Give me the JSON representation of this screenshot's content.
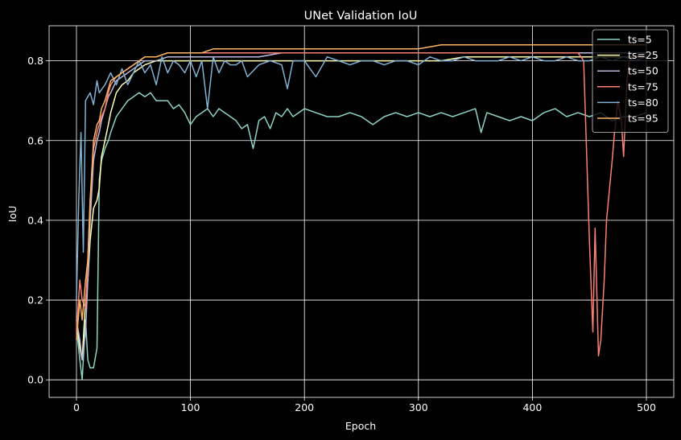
{
  "chart_data": {
    "type": "line",
    "title": "UNet Validation IoU",
    "xlabel": "Epoch",
    "ylabel": "IoU",
    "xlim": [
      -24,
      524
    ],
    "ylim": [
      -0.044,
      0.888
    ],
    "xticks": [
      0,
      100,
      200,
      300,
      400,
      500
    ],
    "yticks": [
      0.0,
      0.2,
      0.4,
      0.6,
      0.8
    ],
    "xtick_labels": [
      "0",
      "100",
      "200",
      "300",
      "400",
      "500"
    ],
    "ytick_labels": [
      "0.0",
      "0.2",
      "0.4",
      "0.6",
      "0.8"
    ],
    "grid": true,
    "legend_position": "upper-right",
    "background": "#000000",
    "series": [
      {
        "name": "ts=5",
        "color": "#8dd3c7",
        "x": [
          0,
          3,
          5,
          8,
          10,
          12,
          15,
          18,
          20,
          22,
          25,
          28,
          30,
          35,
          40,
          45,
          50,
          55,
          60,
          65,
          70,
          75,
          80,
          85,
          90,
          95,
          100,
          105,
          110,
          115,
          120,
          125,
          130,
          135,
          140,
          145,
          150,
          155,
          160,
          165,
          170,
          175,
          180,
          185,
          190,
          195,
          200,
          210,
          220,
          230,
          240,
          250,
          260,
          270,
          280,
          290,
          300,
          310,
          320,
          330,
          340,
          350,
          355,
          360,
          370,
          380,
          390,
          400,
          410,
          420,
          430,
          440,
          450,
          460,
          470,
          480,
          490,
          500
        ],
        "y": [
          0.13,
          0.05,
          0.0,
          0.15,
          0.05,
          0.03,
          0.03,
          0.08,
          0.5,
          0.55,
          0.58,
          0.6,
          0.62,
          0.66,
          0.68,
          0.7,
          0.71,
          0.72,
          0.71,
          0.72,
          0.7,
          0.7,
          0.7,
          0.68,
          0.69,
          0.67,
          0.64,
          0.66,
          0.67,
          0.68,
          0.66,
          0.68,
          0.67,
          0.66,
          0.65,
          0.63,
          0.64,
          0.58,
          0.65,
          0.66,
          0.63,
          0.67,
          0.66,
          0.68,
          0.66,
          0.67,
          0.68,
          0.67,
          0.66,
          0.66,
          0.67,
          0.66,
          0.64,
          0.66,
          0.67,
          0.66,
          0.67,
          0.66,
          0.67,
          0.66,
          0.67,
          0.68,
          0.62,
          0.67,
          0.66,
          0.65,
          0.66,
          0.65,
          0.67,
          0.68,
          0.66,
          0.67,
          0.66,
          0.67,
          0.65,
          0.66,
          0.66,
          0.67
        ]
      },
      {
        "name": "ts=25",
        "color": "#ffffb3",
        "x": [
          0,
          3,
          5,
          8,
          10,
          12,
          15,
          18,
          20,
          22,
          25,
          28,
          30,
          35,
          40,
          45,
          50,
          55,
          60,
          70,
          80,
          90,
          100,
          120,
          140,
          160,
          180,
          200,
          220,
          240,
          260,
          280,
          300,
          320,
          340,
          360,
          380,
          400,
          420,
          440,
          460,
          480,
          500
        ],
        "y": [
          0.15,
          0.08,
          0.05,
          0.2,
          0.25,
          0.35,
          0.43,
          0.45,
          0.48,
          0.56,
          0.6,
          0.64,
          0.67,
          0.72,
          0.74,
          0.75,
          0.77,
          0.78,
          0.79,
          0.8,
          0.8,
          0.8,
          0.8,
          0.8,
          0.8,
          0.8,
          0.8,
          0.8,
          0.8,
          0.8,
          0.8,
          0.8,
          0.8,
          0.8,
          0.81,
          0.81,
          0.81,
          0.81,
          0.81,
          0.81,
          0.81,
          0.81,
          0.81
        ]
      },
      {
        "name": "ts=50",
        "color": "#bebada",
        "x": [
          0,
          3,
          5,
          8,
          10,
          12,
          15,
          18,
          20,
          22,
          25,
          28,
          30,
          35,
          40,
          45,
          50,
          55,
          60,
          70,
          80,
          90,
          100,
          120,
          140,
          160,
          180,
          200,
          220,
          240,
          260,
          280,
          300,
          320,
          340,
          360,
          380,
          400,
          420,
          440,
          460,
          480,
          500
        ],
        "y": [
          0.15,
          0.1,
          0.05,
          0.12,
          0.25,
          0.4,
          0.55,
          0.6,
          0.62,
          0.65,
          0.68,
          0.71,
          0.72,
          0.75,
          0.76,
          0.77,
          0.78,
          0.79,
          0.8,
          0.8,
          0.81,
          0.81,
          0.81,
          0.81,
          0.81,
          0.81,
          0.82,
          0.82,
          0.82,
          0.82,
          0.82,
          0.82,
          0.82,
          0.82,
          0.82,
          0.82,
          0.82,
          0.82,
          0.82,
          0.82,
          0.82,
          0.82,
          0.82
        ]
      },
      {
        "name": "ts=75",
        "color": "#fb8072",
        "x": [
          0,
          3,
          5,
          8,
          10,
          12,
          15,
          18,
          20,
          22,
          25,
          28,
          30,
          35,
          40,
          45,
          50,
          55,
          60,
          70,
          80,
          90,
          100,
          120,
          140,
          160,
          180,
          200,
          220,
          240,
          260,
          280,
          300,
          320,
          340,
          360,
          380,
          400,
          420,
          440,
          445,
          450,
          453,
          455,
          458,
          460,
          463,
          465,
          470,
          472,
          475,
          478,
          480,
          483,
          485,
          490,
          500
        ],
        "y": [
          0.12,
          0.25,
          0.2,
          0.18,
          0.3,
          0.45,
          0.58,
          0.62,
          0.64,
          0.66,
          0.68,
          0.72,
          0.74,
          0.76,
          0.77,
          0.78,
          0.79,
          0.8,
          0.81,
          0.81,
          0.82,
          0.82,
          0.82,
          0.82,
          0.82,
          0.82,
          0.82,
          0.82,
          0.82,
          0.82,
          0.82,
          0.82,
          0.82,
          0.82,
          0.82,
          0.82,
          0.82,
          0.82,
          0.82,
          0.82,
          0.8,
          0.35,
          0.12,
          0.38,
          0.06,
          0.1,
          0.25,
          0.4,
          0.55,
          0.62,
          0.7,
          0.65,
          0.56,
          0.75,
          0.8,
          0.81,
          0.82
        ]
      },
      {
        "name": "ts=80",
        "color": "#80b1d3",
        "x": [
          0,
          2,
          4,
          6,
          8,
          10,
          12,
          15,
          18,
          20,
          25,
          30,
          35,
          40,
          45,
          50,
          55,
          60,
          65,
          70,
          75,
          80,
          85,
          90,
          95,
          100,
          105,
          110,
          115,
          120,
          125,
          130,
          135,
          140,
          145,
          150,
          160,
          170,
          180,
          185,
          190,
          200,
          210,
          220,
          230,
          240,
          250,
          260,
          270,
          280,
          290,
          300,
          310,
          320,
          330,
          340,
          350,
          360,
          370,
          380,
          390,
          400,
          410,
          420,
          430,
          440,
          450,
          460,
          470,
          480,
          490,
          500
        ],
        "y": [
          0.2,
          0.45,
          0.62,
          0.32,
          0.7,
          0.71,
          0.72,
          0.69,
          0.75,
          0.72,
          0.74,
          0.77,
          0.74,
          0.78,
          0.74,
          0.77,
          0.8,
          0.77,
          0.79,
          0.74,
          0.81,
          0.77,
          0.8,
          0.79,
          0.77,
          0.8,
          0.76,
          0.8,
          0.68,
          0.81,
          0.77,
          0.8,
          0.79,
          0.79,
          0.8,
          0.76,
          0.79,
          0.8,
          0.79,
          0.73,
          0.8,
          0.8,
          0.76,
          0.81,
          0.8,
          0.79,
          0.8,
          0.8,
          0.79,
          0.8,
          0.8,
          0.79,
          0.81,
          0.8,
          0.8,
          0.81,
          0.8,
          0.8,
          0.8,
          0.81,
          0.8,
          0.81,
          0.8,
          0.8,
          0.81,
          0.8,
          0.8,
          0.81,
          0.8,
          0.81,
          0.8,
          0.81
        ]
      },
      {
        "name": "ts=95",
        "color": "#fdb462",
        "x": [
          0,
          3,
          5,
          8,
          10,
          12,
          15,
          18,
          20,
          22,
          25,
          28,
          30,
          35,
          40,
          45,
          50,
          55,
          60,
          70,
          80,
          90,
          100,
          110,
          120,
          140,
          160,
          180,
          200,
          220,
          240,
          260,
          280,
          300,
          320,
          340,
          360,
          380,
          400,
          420,
          440,
          460,
          480,
          500
        ],
        "y": [
          0.1,
          0.2,
          0.15,
          0.25,
          0.3,
          0.45,
          0.6,
          0.64,
          0.65,
          0.68,
          0.7,
          0.73,
          0.75,
          0.76,
          0.77,
          0.78,
          0.79,
          0.8,
          0.81,
          0.81,
          0.82,
          0.82,
          0.82,
          0.82,
          0.83,
          0.83,
          0.83,
          0.83,
          0.83,
          0.83,
          0.83,
          0.83,
          0.83,
          0.83,
          0.84,
          0.84,
          0.84,
          0.84,
          0.84,
          0.84,
          0.84,
          0.84,
          0.84,
          0.84
        ]
      }
    ]
  }
}
